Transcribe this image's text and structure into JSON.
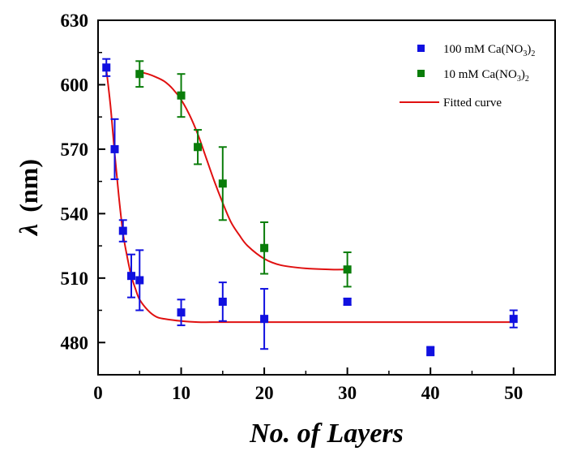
{
  "chart_data": {
    "type": "scatter",
    "xlabel": "No. of Layers",
    "ylabel_symbol": "λ",
    "ylabel_unit": "(nm)",
    "xlim": [
      0,
      55
    ],
    "ylim": [
      465,
      630
    ],
    "x_ticks": [
      0,
      10,
      20,
      30,
      40,
      50
    ],
    "y_ticks": [
      480,
      510,
      540,
      570,
      600,
      630
    ],
    "grid": false,
    "legend_position": "top-right",
    "series": [
      {
        "name": "100 mM Ca(NO3)2",
        "legend_parts": {
          "a": "100 mM Ca(NO",
          "sub1": "3",
          "b": ")",
          "sub2": "2"
        },
        "color": "#1010e0",
        "marker": "square",
        "points": [
          {
            "x": 1,
            "y": 608,
            "err": 4
          },
          {
            "x": 2,
            "y": 570,
            "err": 14
          },
          {
            "x": 3,
            "y": 532,
            "err": 5
          },
          {
            "x": 4,
            "y": 511,
            "err": 10
          },
          {
            "x": 5,
            "y": 509,
            "err": 14
          },
          {
            "x": 10,
            "y": 494,
            "err": 6
          },
          {
            "x": 15,
            "y": 499,
            "err": 9
          },
          {
            "x": 20,
            "y": 491,
            "err": 14
          },
          {
            "x": 30,
            "y": 499,
            "err": 1.5
          },
          {
            "x": 40,
            "y": 476,
            "err": 2
          },
          {
            "x": 50,
            "y": 491,
            "err": 4
          }
        ]
      },
      {
        "name": "10 mM Ca(NO3)2",
        "legend_parts": {
          "a": "10 mM Ca(NO",
          "sub1": "3",
          "b": ")",
          "sub2": "2"
        },
        "color": "#0a7d0a",
        "marker": "square",
        "points": [
          {
            "x": 5,
            "y": 605,
            "err": 6
          },
          {
            "x": 10,
            "y": 595,
            "err": 10
          },
          {
            "x": 12,
            "y": 571,
            "err": 8
          },
          {
            "x": 15,
            "y": 554,
            "err": 17
          },
          {
            "x": 20,
            "y": 524,
            "err": 12
          },
          {
            "x": 30,
            "y": 514,
            "err": 8
          }
        ]
      }
    ],
    "fitted_curve": {
      "name": "Fitted curve",
      "color": "#e01010",
      "curves": [
        {
          "x": [
            1,
            1.5,
            2,
            2.5,
            3,
            3.5,
            4,
            4.5,
            5,
            6,
            7,
            8,
            10,
            12,
            15,
            20,
            30,
            40,
            50
          ],
          "y": [
            607,
            590,
            568,
            548,
            531,
            520,
            511,
            505,
            500,
            495,
            492,
            491,
            490,
            489.5,
            489.5,
            489.5,
            489.5,
            489.5,
            489.5
          ]
        },
        {
          "x": [
            5,
            6,
            7,
            8,
            9,
            10,
            11,
            12,
            13,
            14,
            15,
            16,
            17,
            18,
            20,
            22,
            25,
            28,
            30
          ],
          "y": [
            606,
            605,
            603.5,
            601.5,
            598,
            593,
            586,
            577,
            566,
            555,
            545,
            536,
            530,
            525,
            519,
            516,
            514.5,
            514,
            514
          ]
        }
      ]
    }
  }
}
